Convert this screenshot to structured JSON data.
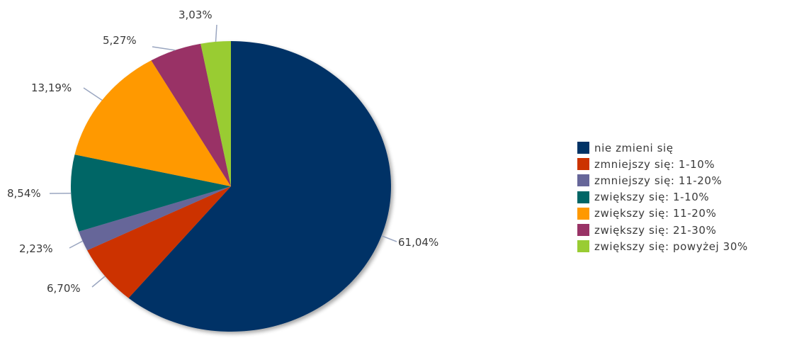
{
  "chart_data": {
    "type": "pie",
    "title": "",
    "slices": [
      {
        "name": "nie zmieni się",
        "value": 61.04,
        "label": "61,04%",
        "color": "#003366"
      },
      {
        "name": "zmniejszy się: 1-10%",
        "value": 6.7,
        "label": "6,70%",
        "color": "#cc3300"
      },
      {
        "name": "zmniejszy się: 11-20%",
        "value": 2.23,
        "label": "2,23%",
        "color": "#666699"
      },
      {
        "name": "zwiększy się: 1-10%",
        "value": 8.54,
        "label": "8,54%",
        "color": "#006666"
      },
      {
        "name": "zwiększy się: 11-20%",
        "value": 13.19,
        "label": "13,19%",
        "color": "#ff9900"
      },
      {
        "name": "zwiększy się: 21-30%",
        "value": 5.27,
        "label": "5,27%",
        "color": "#993366"
      },
      {
        "name": "zwiększy się: powyżej 30%",
        "value": 3.03,
        "label": "3,03%",
        "color": "#99cc33"
      }
    ],
    "legend_position": "right"
  }
}
